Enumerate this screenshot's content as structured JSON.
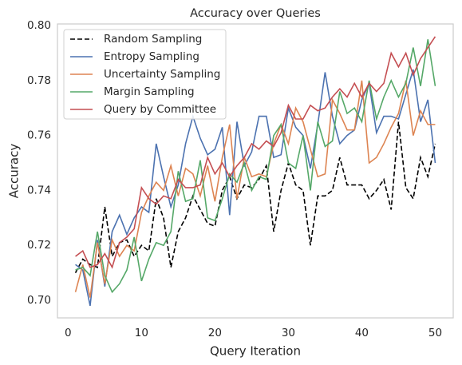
{
  "chart_data": {
    "type": "line",
    "title": "Accuracy over Queries",
    "xlabel": "Query Iteration",
    "ylabel": "Accuracy",
    "x": [
      1,
      2,
      3,
      4,
      5,
      6,
      7,
      8,
      9,
      10,
      11,
      12,
      13,
      14,
      15,
      16,
      17,
      18,
      19,
      20,
      21,
      22,
      23,
      24,
      25,
      26,
      27,
      28,
      29,
      30,
      31,
      32,
      33,
      34,
      35,
      36,
      37,
      38,
      39,
      40,
      41,
      42,
      43,
      44,
      45,
      46,
      47,
      48,
      49,
      50
    ],
    "series": [
      {
        "name": "Random Sampling",
        "color": "#000000",
        "linestyle": "dashed",
        "values": [
          0.71,
          0.715,
          0.713,
          0.712,
          0.734,
          0.716,
          0.721,
          0.722,
          0.716,
          0.72,
          0.718,
          0.737,
          0.73,
          0.712,
          0.725,
          0.73,
          0.738,
          0.733,
          0.728,
          0.727,
          0.74,
          0.745,
          0.737,
          0.742,
          0.741,
          0.744,
          0.749,
          0.725,
          0.74,
          0.75,
          0.742,
          0.74,
          0.72,
          0.738,
          0.738,
          0.74,
          0.752,
          0.742,
          0.742,
          0.742,
          0.737,
          0.74,
          0.744,
          0.733,
          0.765,
          0.741,
          0.737,
          0.752,
          0.745,
          0.757
        ]
      },
      {
        "name": "Entropy Sampling",
        "color": "#4c72b0",
        "linestyle": "solid",
        "values": [
          0.713,
          0.711,
          0.698,
          0.722,
          0.705,
          0.725,
          0.731,
          0.724,
          0.73,
          0.734,
          0.732,
          0.757,
          0.745,
          0.734,
          0.742,
          0.757,
          0.767,
          0.759,
          0.753,
          0.755,
          0.763,
          0.731,
          0.765,
          0.749,
          0.754,
          0.767,
          0.767,
          0.752,
          0.753,
          0.77,
          0.763,
          0.76,
          0.748,
          0.764,
          0.783,
          0.767,
          0.757,
          0.76,
          0.762,
          0.773,
          0.779,
          0.761,
          0.767,
          0.767,
          0.766,
          0.775,
          0.784,
          0.765,
          0.773,
          0.75
        ]
      },
      {
        "name": "Uncertainty Sampling",
        "color": "#dd8452",
        "linestyle": "solid",
        "values": [
          0.703,
          0.713,
          0.701,
          0.721,
          0.706,
          0.722,
          0.716,
          0.72,
          0.718,
          0.732,
          0.738,
          0.743,
          0.74,
          0.749,
          0.738,
          0.748,
          0.746,
          0.738,
          0.749,
          0.736,
          0.752,
          0.764,
          0.737,
          0.752,
          0.745,
          0.746,
          0.745,
          0.757,
          0.764,
          0.757,
          0.77,
          0.765,
          0.755,
          0.745,
          0.746,
          0.773,
          0.768,
          0.762,
          0.762,
          0.78,
          0.75,
          0.752,
          0.757,
          0.763,
          0.768,
          0.78,
          0.76,
          0.769,
          0.764,
          0.764
        ]
      },
      {
        "name": "Margin Sampling",
        "color": "#55a868",
        "linestyle": "solid",
        "values": [
          0.711,
          0.712,
          0.709,
          0.725,
          0.709,
          0.703,
          0.706,
          0.711,
          0.723,
          0.707,
          0.715,
          0.721,
          0.72,
          0.725,
          0.747,
          0.736,
          0.737,
          0.751,
          0.73,
          0.729,
          0.737,
          0.746,
          0.743,
          0.75,
          0.74,
          0.745,
          0.744,
          0.76,
          0.764,
          0.75,
          0.748,
          0.76,
          0.74,
          0.765,
          0.756,
          0.758,
          0.776,
          0.768,
          0.77,
          0.765,
          0.78,
          0.766,
          0.774,
          0.78,
          0.774,
          0.779,
          0.792,
          0.778,
          0.795,
          0.778
        ]
      },
      {
        "name": "Query by Committee",
        "color": "#c44e52",
        "linestyle": "solid",
        "values": [
          0.716,
          0.718,
          0.712,
          0.713,
          0.717,
          0.712,
          0.721,
          0.723,
          0.726,
          0.741,
          0.737,
          0.735,
          0.738,
          0.737,
          0.744,
          0.741,
          0.741,
          0.742,
          0.752,
          0.746,
          0.75,
          0.745,
          0.749,
          0.752,
          0.757,
          0.755,
          0.758,
          0.756,
          0.761,
          0.771,
          0.766,
          0.766,
          0.771,
          0.769,
          0.77,
          0.774,
          0.777,
          0.774,
          0.779,
          0.774,
          0.779,
          0.776,
          0.779,
          0.79,
          0.785,
          0.79,
          0.782,
          0.788,
          0.792,
          0.796
        ]
      }
    ],
    "xlim": [
      -1.45,
      52.45
    ],
    "xticks": [
      0,
      10,
      20,
      30,
      40,
      50
    ],
    "ylim": [
      0.6936,
      0.8006
    ],
    "yticks": [
      {
        "value": 0.7,
        "label": "0.70"
      },
      {
        "value": 0.72,
        "label": "0.72"
      },
      {
        "value": 0.74,
        "label": "0.74"
      },
      {
        "value": 0.76,
        "label": "0.76"
      },
      {
        "value": 0.78,
        "label": "0.78"
      },
      {
        "value": 0.8,
        "label": "0.80"
      }
    ],
    "grid": false,
    "legend": "upper left"
  }
}
